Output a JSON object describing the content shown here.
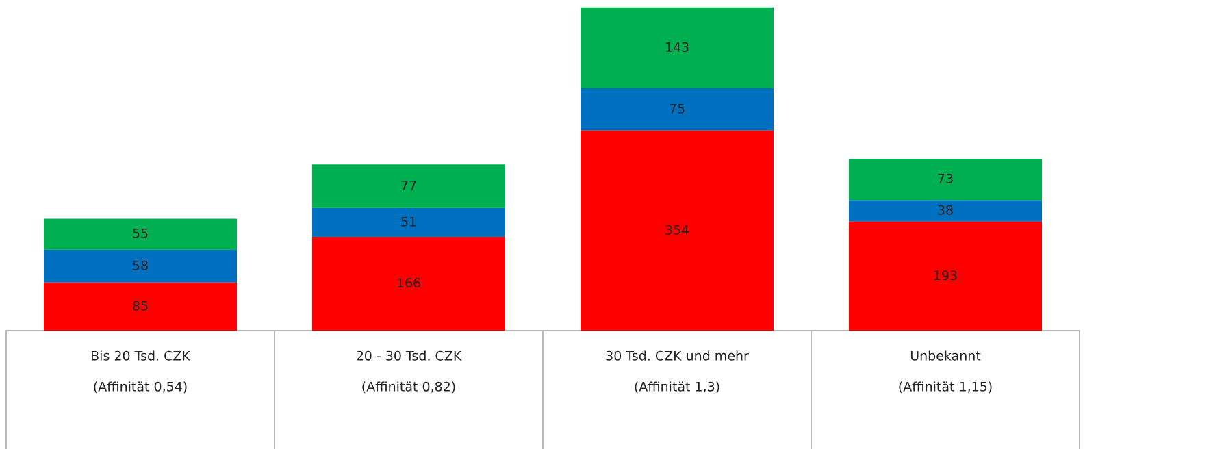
{
  "chart_data": {
    "type": "stacked-bar",
    "categories": [
      [
        "Bis 20 Tsd. CZK",
        "(Affinität 0,54)"
      ],
      [
        "20 - 30 Tsd. CZK",
        "(Affinität 0,82)"
      ],
      [
        "30 Tsd. CZK und mehr",
        "(Affinität 1,3)"
      ],
      [
        "Unbekannt",
        "(Affinität 1,15)"
      ]
    ],
    "series": [
      {
        "color": "#ff0000",
        "values": [
          85,
          166,
          354,
          193
        ]
      },
      {
        "color": "#0070c0",
        "values": [
          58,
          51,
          75,
          38
        ]
      },
      {
        "color": "#00b050",
        "values": [
          55,
          77,
          143,
          73
        ]
      }
    ],
    "ylim": [
      0,
      585
    ]
  }
}
